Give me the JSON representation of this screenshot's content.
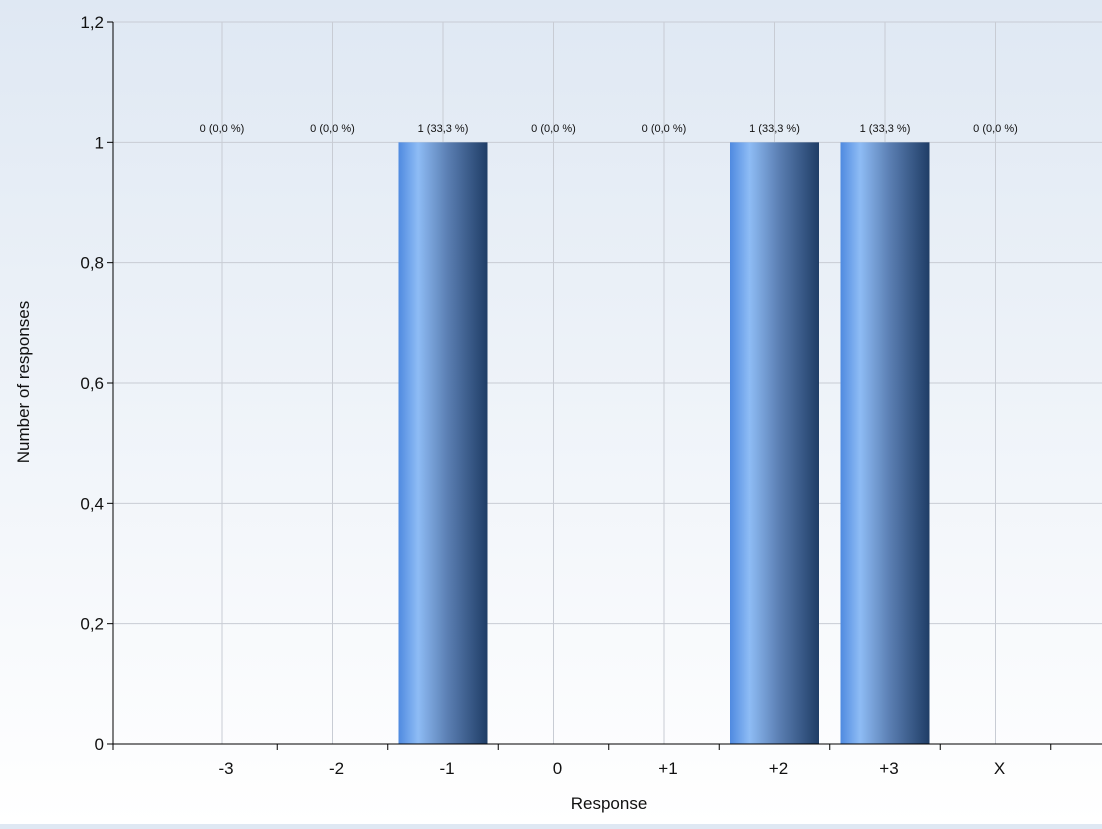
{
  "chart_data": {
    "type": "bar",
    "categories": [
      "-3",
      "-2",
      "-1",
      "0",
      "+1",
      "+2",
      "+3",
      "X"
    ],
    "values": [
      0,
      0,
      1,
      0,
      0,
      1,
      1,
      0
    ],
    "data_labels": [
      "0 (0,0 %)",
      "0 (0,0 %)",
      "1 (33,3 %)",
      "0 (0,0 %)",
      "0 (0,0 %)",
      "1 (33,3 %)",
      "1 (33,3 %)",
      "0 (0,0 %)"
    ],
    "xlabel": "Response",
    "ylabel": "Number of responses",
    "ylim": [
      0,
      1.2
    ],
    "yticks": [
      0,
      0.2,
      0.4,
      0.6,
      0.8,
      1,
      1.2
    ],
    "ytick_labels": [
      "0",
      "0,2",
      "0,4",
      "0,6",
      "0,8",
      "1",
      "1,2"
    ],
    "grid": true,
    "legend": "none",
    "colors": {
      "bar_dark": "#1f3d66",
      "bar_mid": "#5b7fb3",
      "bar_light": "#8ebcf5",
      "bar_edge": "#4f8ae0",
      "grid": "#c8ccd4",
      "axis": "#000000"
    }
  }
}
